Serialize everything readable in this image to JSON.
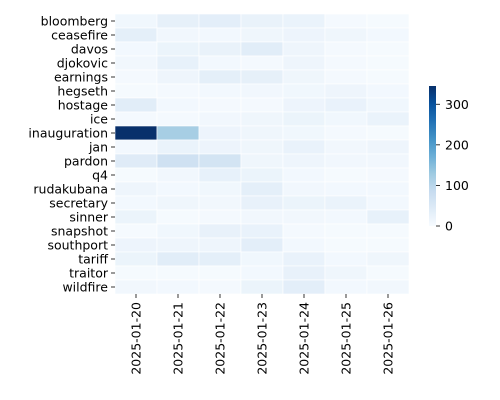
{
  "chart_data": {
    "type": "heatmap",
    "title": "",
    "xlabel": "",
    "ylabel": "",
    "columns": [
      "2025-01-20",
      "2025-01-21",
      "2025-01-22",
      "2025-01-23",
      "2025-01-24",
      "2025-01-25",
      "2025-01-26"
    ],
    "rows": [
      "bloomberg",
      "ceasefire",
      "davos",
      "djokovic",
      "earnings",
      "hegseth",
      "hostage",
      "ice",
      "inauguration",
      "jan",
      "pardon",
      "q4",
      "rudakubana",
      "secretary",
      "sinner",
      "snapshot",
      "southport",
      "tariff",
      "traitor",
      "wildfire"
    ],
    "values": [
      [
        12,
        30,
        35,
        25,
        22,
        5,
        4
      ],
      [
        32,
        10,
        8,
        14,
        18,
        14,
        8
      ],
      [
        8,
        20,
        25,
        38,
        16,
        6,
        3
      ],
      [
        10,
        28,
        8,
        6,
        16,
        6,
        4
      ],
      [
        5,
        16,
        32,
        30,
        14,
        6,
        4
      ],
      [
        3,
        6,
        8,
        10,
        12,
        16,
        8
      ],
      [
        38,
        8,
        6,
        6,
        18,
        24,
        12
      ],
      [
        6,
        5,
        10,
        14,
        20,
        12,
        22
      ],
      [
        345,
        120,
        18,
        14,
        12,
        6,
        4
      ],
      [
        8,
        22,
        18,
        14,
        24,
        10,
        16
      ],
      [
        42,
        70,
        62,
        14,
        16,
        10,
        10
      ],
      [
        4,
        10,
        28,
        20,
        8,
        4,
        6
      ],
      [
        16,
        8,
        12,
        32,
        10,
        8,
        8
      ],
      [
        8,
        14,
        10,
        26,
        20,
        22,
        8
      ],
      [
        20,
        4,
        6,
        10,
        10,
        8,
        28
      ],
      [
        4,
        12,
        26,
        24,
        6,
        4,
        4
      ],
      [
        18,
        16,
        16,
        34,
        8,
        4,
        4
      ],
      [
        20,
        38,
        32,
        12,
        24,
        8,
        14
      ],
      [
        3,
        4,
        4,
        8,
        26,
        14,
        4
      ],
      [
        10,
        8,
        6,
        20,
        34,
        8,
        10
      ]
    ],
    "vmin": 0,
    "vmax": 345,
    "colormap": "Blues",
    "colorbar_ticks": [
      0,
      100,
      200,
      300
    ]
  }
}
